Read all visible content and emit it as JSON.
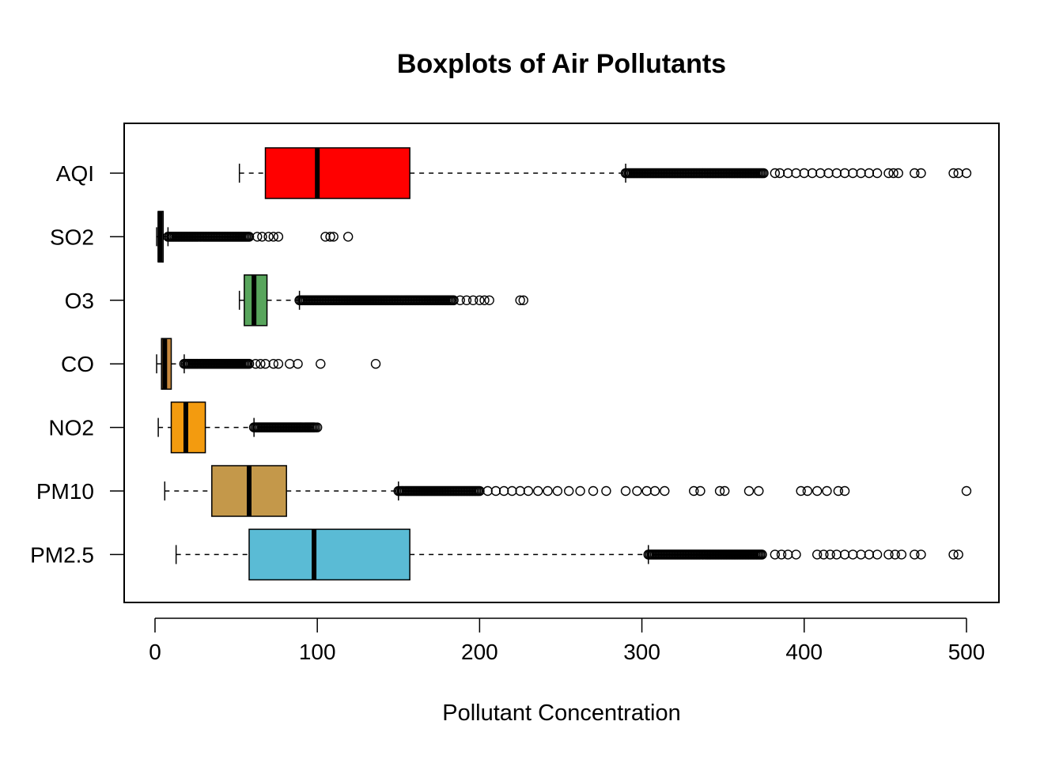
{
  "chart_data": {
    "type": "boxplot",
    "orientation": "horizontal",
    "title": "Boxplots of Air Pollutants",
    "xlabel": "Pollutant Concentration",
    "ylabel": "",
    "xlim": [
      -19,
      520
    ],
    "x_ticks": [
      0,
      100,
      200,
      300,
      400,
      500
    ],
    "grid": false,
    "categories": [
      "AQI",
      "SO2",
      "O3",
      "CO",
      "NO2",
      "PM10",
      "PM2.5"
    ],
    "series": [
      {
        "category": "AQI",
        "color": "#FF0000",
        "whisker_low": 52,
        "q1": 68,
        "median": 100,
        "q3": 157,
        "whisker_high": 290,
        "outlier_band": [
          290,
          375
        ],
        "outliers": [
          382,
          385,
          390,
          395,
          400,
          405,
          410,
          415,
          420,
          425,
          430,
          435,
          440,
          445,
          452,
          455,
          458,
          468,
          472,
          492,
          495,
          500
        ]
      },
      {
        "category": "SO2",
        "color": "#595959",
        "whisker_low": 1,
        "q1": 2,
        "median": 3,
        "q3": 5,
        "whisker_high": 8,
        "outlier_band": [
          8,
          58
        ],
        "outliers": [
          63,
          66,
          70,
          73,
          76,
          105,
          108,
          110,
          119
        ]
      },
      {
        "category": "O3",
        "color": "#58A55C",
        "whisker_low": 52,
        "q1": 55,
        "median": 61,
        "q3": 69,
        "whisker_high": 89,
        "outlier_band": [
          89,
          184
        ],
        "outliers": [
          188,
          192,
          196,
          200,
          203,
          206,
          225,
          227
        ]
      },
      {
        "category": "CO",
        "color": "#C8893E",
        "whisker_low": 1,
        "q1": 4,
        "median": 6,
        "q3": 10,
        "whisker_high": 18,
        "outlier_band": [
          18,
          58
        ],
        "outliers": [
          62,
          65,
          68,
          73,
          76,
          83,
          88,
          102,
          136
        ]
      },
      {
        "category": "NO2",
        "color": "#F39B0F",
        "whisker_low": 2,
        "q1": 10,
        "median": 19,
        "q3": 31,
        "whisker_high": 61,
        "outlier_band": [
          61,
          98
        ],
        "outliers": [
          99,
          100
        ]
      },
      {
        "category": "PM10",
        "color": "#C4984A",
        "whisker_low": 6,
        "q1": 35,
        "median": 58,
        "q3": 81,
        "whisker_high": 150,
        "outlier_band": [
          150,
          200
        ],
        "outliers": [
          205,
          210,
          215,
          220,
          225,
          230,
          236,
          242,
          248,
          255,
          262,
          270,
          278,
          290,
          297,
          303,
          308,
          314,
          332,
          336,
          348,
          351,
          366,
          372,
          398,
          402,
          408,
          414,
          421,
          425,
          500
        ]
      },
      {
        "category": "PM2.5",
        "color": "#5ABBD5",
        "whisker_low": 13,
        "q1": 58,
        "median": 98,
        "q3": 157,
        "whisker_high": 304,
        "outlier_band": [
          304,
          374
        ],
        "outliers": [
          382,
          386,
          390,
          395,
          408,
          412,
          416,
          420,
          425,
          430,
          435,
          440,
          445,
          452,
          456,
          460,
          468,
          472,
          492,
          495
        ]
      }
    ]
  }
}
